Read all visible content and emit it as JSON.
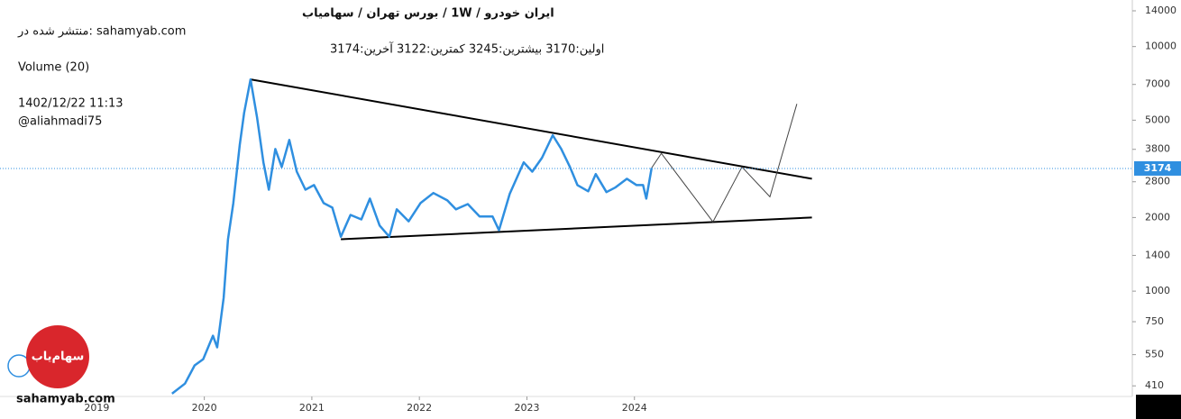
{
  "chart_data": {
    "type": "line",
    "title": "ایران  خودرو /  1W /  بورس تهران / سهامیاب",
    "published": "منتشر شده در: sahamyab.com",
    "ohlc": "اولین:3170  بیشترین:3245  کمترین:3122  آخرین:3174",
    "volume_label": "Volume (20)",
    "date": "1402/12/22 11:13",
    "author": "@aliahmadi75",
    "watermark": "sahamyab.com",
    "logo_text": "سهام‌یاب",
    "log_scale": true,
    "last_price": 3174,
    "x": [
      2019.7,
      2019.82,
      2019.91,
      2019.99,
      2020.08,
      2020.12,
      2020.18,
      2020.22,
      2020.27,
      2020.33,
      2020.37,
      2020.43,
      2020.49,
      2020.55,
      2020.6,
      2020.66,
      2020.72,
      2020.79,
      2020.86,
      2020.94,
      2021.02,
      2021.11,
      2021.19,
      2021.27,
      2021.36,
      2021.46,
      2021.54,
      2021.63,
      2021.72,
      2021.79,
      2021.9,
      2022.01,
      2022.13,
      2022.26,
      2022.34,
      2022.45,
      2022.56,
      2022.68,
      2022.74,
      2022.84,
      2022.97,
      2023.05,
      2023.14,
      2023.24,
      2023.32,
      2023.4,
      2023.47,
      2023.57,
      2023.64,
      2023.74,
      2023.82,
      2023.93,
      2024.02,
      2024.08,
      2024.11,
      2024.16
    ],
    "series": [
      {
        "color": "#2f8fe0",
        "values": [
          381,
          419,
          497,
          527,
          657,
          589,
          940,
          1630,
          2290,
          3980,
          5360,
          7340,
          5140,
          3360,
          2600,
          3810,
          3220,
          4150,
          3080,
          2600,
          2715,
          2290,
          2195,
          1670,
          2050,
          1965,
          2390,
          1855,
          1670,
          2160,
          1930,
          2290,
          2520,
          2350,
          2160,
          2270,
          2020,
          2020,
          1775,
          2500,
          3360,
          3080,
          3510,
          4340,
          3810,
          3220,
          2715,
          2560,
          3010,
          2540,
          2650,
          2880,
          2715,
          2715,
          2390,
          3190
        ]
      }
    ],
    "trendlines": [
      {
        "color": "#000000",
        "x": [
          2020.43,
          2025.65
        ],
        "values": [
          7340,
          2880
        ]
      },
      {
        "color": "#000000",
        "x": [
          2021.27,
          2025.65
        ],
        "values": [
          1630,
          2000
        ]
      },
      {
        "color": "#444444",
        "x": [
          2024.16,
          2024.25,
          2024.73,
          2025.0,
          2025.26,
          2025.51
        ],
        "values": [
          3190,
          3660,
          1920,
          3220,
          2430,
          5830
        ]
      }
    ],
    "xlim": [
      2018.1,
      2028.63
    ],
    "xticks": [
      2019,
      2020,
      2021,
      2022,
      2023,
      2024
    ],
    "ylim": [
      371,
      15500
    ],
    "yticks": [
      410,
      550,
      750,
      1000,
      1400,
      2000,
      2800,
      3800,
      5000,
      7000,
      10000,
      14000
    ]
  }
}
